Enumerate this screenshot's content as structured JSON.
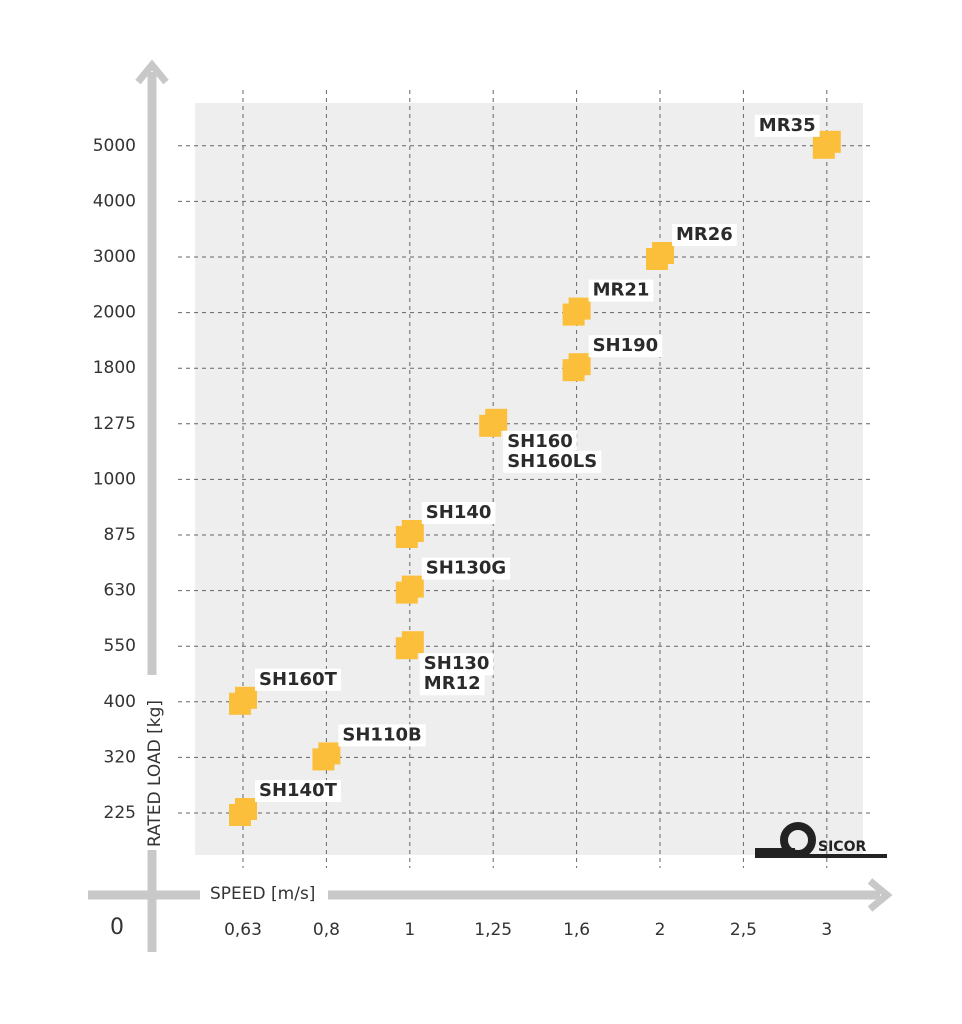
{
  "chart_data": {
    "type": "scatter",
    "x_label": "SPEED [m/s]",
    "y_label": "RATED LOAD [kg]",
    "origin_label": "0",
    "logo_text": "SICOR",
    "color": "#fbbf3b",
    "xticks": [
      {
        "value": 0.63,
        "label": "0,63"
      },
      {
        "value": 0.8,
        "label": "0,8"
      },
      1,
      {
        "value": 1.25,
        "label": "1,25"
      },
      {
        "value": 1.6,
        "label": "1,6"
      },
      2,
      {
        "value": 2.5,
        "label": "2,5"
      },
      3
    ],
    "yticks": [
      225,
      320,
      400,
      550,
      630,
      875,
      1000,
      1275,
      1800,
      2000,
      3000,
      4000,
      5000
    ],
    "points": [
      {
        "labels": [
          "SH140T"
        ],
        "x": 0.63,
        "y": 225
      },
      {
        "labels": [
          "SH110B"
        ],
        "x": 0.8,
        "y": 320
      },
      {
        "labels": [
          "SH160T"
        ],
        "x": 0.63,
        "y": 400
      },
      {
        "labels": [
          "SH130",
          "MR12"
        ],
        "x": 1,
        "y": 550
      },
      {
        "labels": [
          "SH130G"
        ],
        "x": 1,
        "y": 630
      },
      {
        "labels": [
          "SH140"
        ],
        "x": 1,
        "y": 875
      },
      {
        "labels": [
          "SH160",
          "SH160LS"
        ],
        "x": 1.25,
        "y": 1275
      },
      {
        "labels": [
          "SH190"
        ],
        "x": 1.6,
        "y": 1800
      },
      {
        "labels": [
          "MR21"
        ],
        "x": 1.6,
        "y": 2000
      },
      {
        "labels": [
          "MR26"
        ],
        "x": 2,
        "y": 3000
      },
      {
        "labels": [
          "MR35"
        ],
        "x": 3,
        "y": 5000
      }
    ]
  }
}
